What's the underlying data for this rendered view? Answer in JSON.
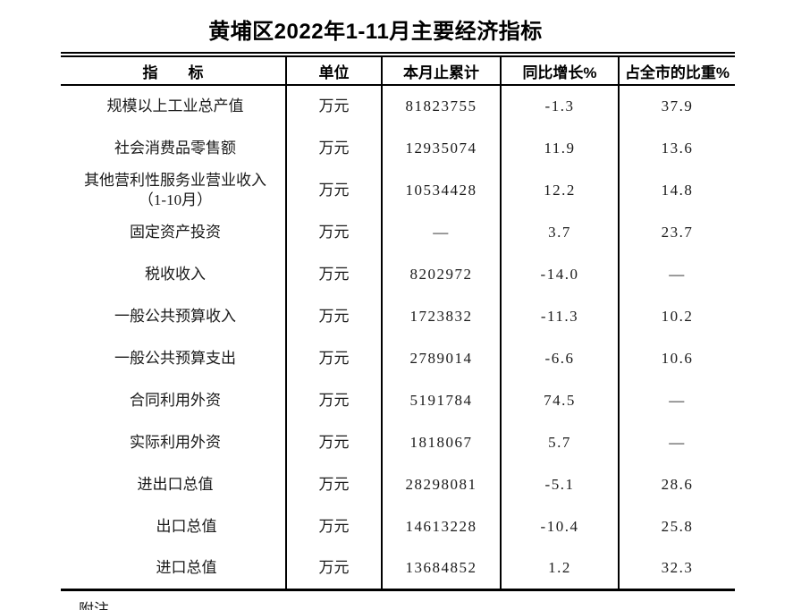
{
  "title": "黄埔区2022年1-11月主要经济指标",
  "footnote": "附注",
  "table": {
    "headers": {
      "indicator": "指　　标",
      "unit": "单位",
      "cumulative": "本月止累计",
      "yoy": "同比增长%",
      "share": "占全市的比重%"
    },
    "rows": [
      {
        "indicator": "规模以上工业总产值",
        "unit": "万元",
        "cumulative": "81823755",
        "yoy": "-1.3",
        "share": "37.9",
        "indent": false
      },
      {
        "indicator": "社会消费品零售额",
        "unit": "万元",
        "cumulative": "12935074",
        "yoy": "11.9",
        "share": "13.6",
        "indent": false
      },
      {
        "indicator": "其他营利性服务业营业收入\n（1-10月）",
        "unit": "万元",
        "cumulative": "10534428",
        "yoy": "12.2",
        "share": "14.8",
        "indent": false
      },
      {
        "indicator": "固定资产投资",
        "unit": "万元",
        "cumulative": "—",
        "yoy": "3.7",
        "share": "23.7",
        "indent": false
      },
      {
        "indicator": "税收收入",
        "unit": "万元",
        "cumulative": "8202972",
        "yoy": "-14.0",
        "share": "—",
        "indent": false
      },
      {
        "indicator": "一般公共预算收入",
        "unit": "万元",
        "cumulative": "1723832",
        "yoy": "-11.3",
        "share": "10.2",
        "indent": false
      },
      {
        "indicator": "一般公共预算支出",
        "unit": "万元",
        "cumulative": "2789014",
        "yoy": "-6.6",
        "share": "10.6",
        "indent": false
      },
      {
        "indicator": "合同利用外资",
        "unit": "万元",
        "cumulative": "5191784",
        "yoy": "74.5",
        "share": "—",
        "indent": false
      },
      {
        "indicator": "实际利用外资",
        "unit": "万元",
        "cumulative": "1818067",
        "yoy": "5.7",
        "share": "—",
        "indent": false
      },
      {
        "indicator": "进出口总值",
        "unit": "万元",
        "cumulative": "28298081",
        "yoy": "-5.1",
        "share": "28.6",
        "indent": false
      },
      {
        "indicator": "出口总值",
        "unit": "万元",
        "cumulative": "14613228",
        "yoy": "-10.4",
        "share": "25.8",
        "indent": true
      },
      {
        "indicator": "进口总值",
        "unit": "万元",
        "cumulative": "13684852",
        "yoy": "1.2",
        "share": "32.3",
        "indent": true
      }
    ]
  },
  "chart_data": {
    "type": "table",
    "title": "黄埔区2022年1-11月主要经济指标",
    "columns": [
      "指标",
      "单位",
      "本月止累计",
      "同比增长%",
      "占全市的比重%"
    ],
    "rows": [
      [
        "规模以上工业总产值",
        "万元",
        81823755,
        -1.3,
        37.9
      ],
      [
        "社会消费品零售额",
        "万元",
        12935074,
        11.9,
        13.6
      ],
      [
        "其他营利性服务业营业收入（1-10月）",
        "万元",
        10534428,
        12.2,
        14.8
      ],
      [
        "固定资产投资",
        "万元",
        null,
        3.7,
        23.7
      ],
      [
        "税收收入",
        "万元",
        8202972,
        -14.0,
        null
      ],
      [
        "一般公共预算收入",
        "万元",
        1723832,
        -11.3,
        10.2
      ],
      [
        "一般公共预算支出",
        "万元",
        2789014,
        -6.6,
        10.6
      ],
      [
        "合同利用外资",
        "万元",
        5191784,
        74.5,
        null
      ],
      [
        "实际利用外资",
        "万元",
        1818067,
        5.7,
        null
      ],
      [
        "进出口总值",
        "万元",
        28298081,
        -5.1,
        28.6
      ],
      [
        "出口总值",
        "万元",
        14613228,
        -10.4,
        25.8
      ],
      [
        "进口总值",
        "万元",
        13684852,
        1.2,
        32.3
      ]
    ],
    "notes": "null cells are shown as — in the table; footnote 附注 is cut off at the bottom edge"
  }
}
